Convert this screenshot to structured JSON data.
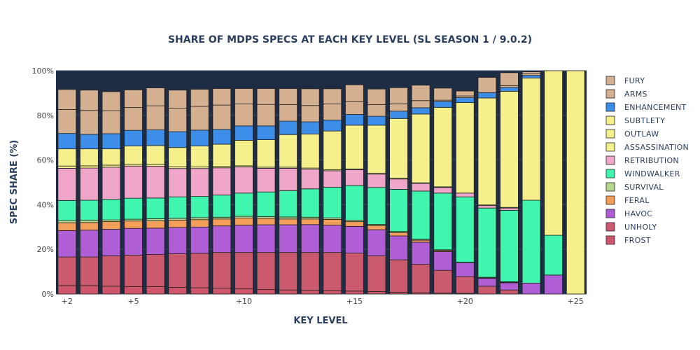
{
  "chart_data": {
    "type": "bar",
    "stacked": true,
    "title": "SHARE OF MDPS SPECS AT EACH KEY LEVEL (SL SEASON 1 / 9.0.2)",
    "xlabel": "KEY LEVEL",
    "ylabel": "SPEC SHARE (%)",
    "ylim": [
      0,
      100
    ],
    "y_ticks": [
      "0%",
      "20%",
      "40%",
      "60%",
      "80%",
      "100%"
    ],
    "x_tick_labels": [
      {
        "at": 2,
        "label": "+2"
      },
      {
        "at": 5,
        "label": "+5"
      },
      {
        "at": 10,
        "label": "+10"
      },
      {
        "at": 15,
        "label": "+15"
      },
      {
        "at": 20,
        "label": "+20"
      },
      {
        "at": 25,
        "label": "+25"
      }
    ],
    "x": [
      2,
      3,
      4,
      5,
      6,
      7,
      8,
      9,
      10,
      11,
      12,
      13,
      14,
      15,
      16,
      17,
      18,
      19,
      20,
      21,
      22,
      23,
      24,
      25
    ],
    "legend_position": "right",
    "series": [
      {
        "name": "FROST",
        "color": "#d0576b",
        "values": [
          3.8,
          3.8,
          3.5,
          3.3,
          3.3,
          3.0,
          2.8,
          2.6,
          2.3,
          2.0,
          1.8,
          1.6,
          1.4,
          1.3,
          1.1,
          0.8,
          0.6,
          0.4,
          0.3,
          0,
          0,
          0,
          0,
          0
        ]
      },
      {
        "name": "UNHOLY",
        "color": "#cc5a6e",
        "values": [
          12.8,
          12.8,
          13.6,
          14.1,
          14.4,
          15.0,
          15.4,
          16.0,
          16.3,
          16.6,
          16.8,
          17.0,
          17.2,
          17.0,
          16.0,
          14.5,
          12.7,
          10.2,
          7.5,
          3.5,
          1.8,
          0,
          0,
          0
        ]
      },
      {
        "name": "HAVOC",
        "color": "#b05ed6",
        "values": [
          11.8,
          12.0,
          11.9,
          12.0,
          11.8,
          11.8,
          11.8,
          11.9,
          12.2,
          12.4,
          12.4,
          12.5,
          12.2,
          12.0,
          11.7,
          10.7,
          9.9,
          8.4,
          6.2,
          3.5,
          3.2,
          4.9,
          8.5,
          0
        ]
      },
      {
        "name": "FERAL",
        "color": "#f49f59",
        "values": [
          3.5,
          3.4,
          3.4,
          3.3,
          3.3,
          3.3,
          3.3,
          3.1,
          3.2,
          2.9,
          2.6,
          2.5,
          2.6,
          2.1,
          1.8,
          1.5,
          0.9,
          0.5,
          0.2,
          0.2,
          0.2,
          0,
          0,
          0
        ]
      },
      {
        "name": "SURVIVAL",
        "color": "#b5d98e",
        "values": [
          1.0,
          1.0,
          0.8,
          0.8,
          0.9,
          0.8,
          0.9,
          0.8,
          0.8,
          0.8,
          0.9,
          0.8,
          0.7,
          0.7,
          0.6,
          0.5,
          0.4,
          0.3,
          0,
          0.3,
          0.3,
          0,
          0,
          0
        ]
      },
      {
        "name": "WINDWALKER",
        "color": "#40f5ad",
        "values": [
          9.0,
          9.0,
          9.2,
          9.4,
          9.3,
          9.6,
          9.5,
          9.9,
          10.4,
          11.0,
          11.8,
          12.7,
          13.7,
          15.5,
          16.5,
          18.9,
          21.6,
          25.4,
          29.3,
          31.0,
          32.0,
          37.1,
          17.8,
          0
        ]
      },
      {
        "name": "RETRIBUTION",
        "color": "#f0a6c9",
        "values": [
          14.4,
          14.4,
          14.4,
          14.4,
          14.2,
          12.7,
          12.5,
          12.2,
          11.7,
          10.6,
          10.0,
          8.8,
          7.4,
          7.1,
          6.0,
          4.6,
          3.4,
          2.5,
          1.7,
          1.1,
          1.0,
          0,
          0,
          0
        ]
      },
      {
        "name": "ASSASSINATION",
        "color": "#f5f08c",
        "values": [
          1.0,
          1.0,
          0.9,
          0.8,
          0.8,
          0.8,
          0.7,
          0.6,
          0.5,
          0.5,
          0.5,
          0.5,
          0.5,
          0.3,
          0.3,
          0.3,
          0.3,
          0.3,
          0,
          0.3,
          0.3,
          0,
          0,
          0
        ]
      },
      {
        "name": "OUTLAW",
        "color": "#f5f08c",
        "values": [
          0,
          0,
          0,
          0,
          0,
          0,
          0,
          0,
          0,
          0,
          0,
          0,
          0,
          0,
          0,
          0,
          0,
          0,
          0,
          0,
          0,
          0,
          0,
          0
        ]
      },
      {
        "name": "SUBTLETY",
        "color": "#f5f08c",
        "values": [
          7.7,
          7.6,
          7.3,
          8.2,
          8.5,
          8.6,
          9.4,
          10.0,
          11.4,
          12.3,
          14.6,
          15.2,
          17.3,
          19.6,
          21.6,
          26.8,
          30.8,
          35.6,
          40.5,
          47.9,
          52.0,
          54.7,
          73.7,
          100
        ]
      },
      {
        "name": "ENHANCEMENT",
        "color": "#3d8ee8",
        "values": [
          6.9,
          6.5,
          6.8,
          7.0,
          7.0,
          7.1,
          7.1,
          6.6,
          6.5,
          6.2,
          6.0,
          5.5,
          4.9,
          4.8,
          4.0,
          3.3,
          2.8,
          2.7,
          2.2,
          2.4,
          1.7,
          1.2,
          0,
          0
        ]
      },
      {
        "name": "ARMS",
        "color": "#d5b090",
        "values": [
          10.7,
          10.7,
          10.3,
          10.2,
          10.8,
          10.5,
          10.6,
          10.9,
          9.8,
          9.6,
          7.4,
          7.3,
          7.2,
          5.7,
          5.2,
          3.3,
          3.2,
          0.5,
          0.8,
          0,
          0.8,
          0.8,
          0,
          0
        ]
      },
      {
        "name": "FURY",
        "color": "#d5b090",
        "values": [
          9.0,
          9.1,
          8.5,
          7.9,
          8.0,
          8.1,
          7.7,
          7.4,
          6.9,
          7.1,
          7.2,
          7.5,
          6.8,
          7.6,
          7.0,
          7.2,
          6.9,
          5.4,
          2.2,
          6.8,
          5.8,
          0.8,
          0,
          0
        ]
      }
    ]
  }
}
